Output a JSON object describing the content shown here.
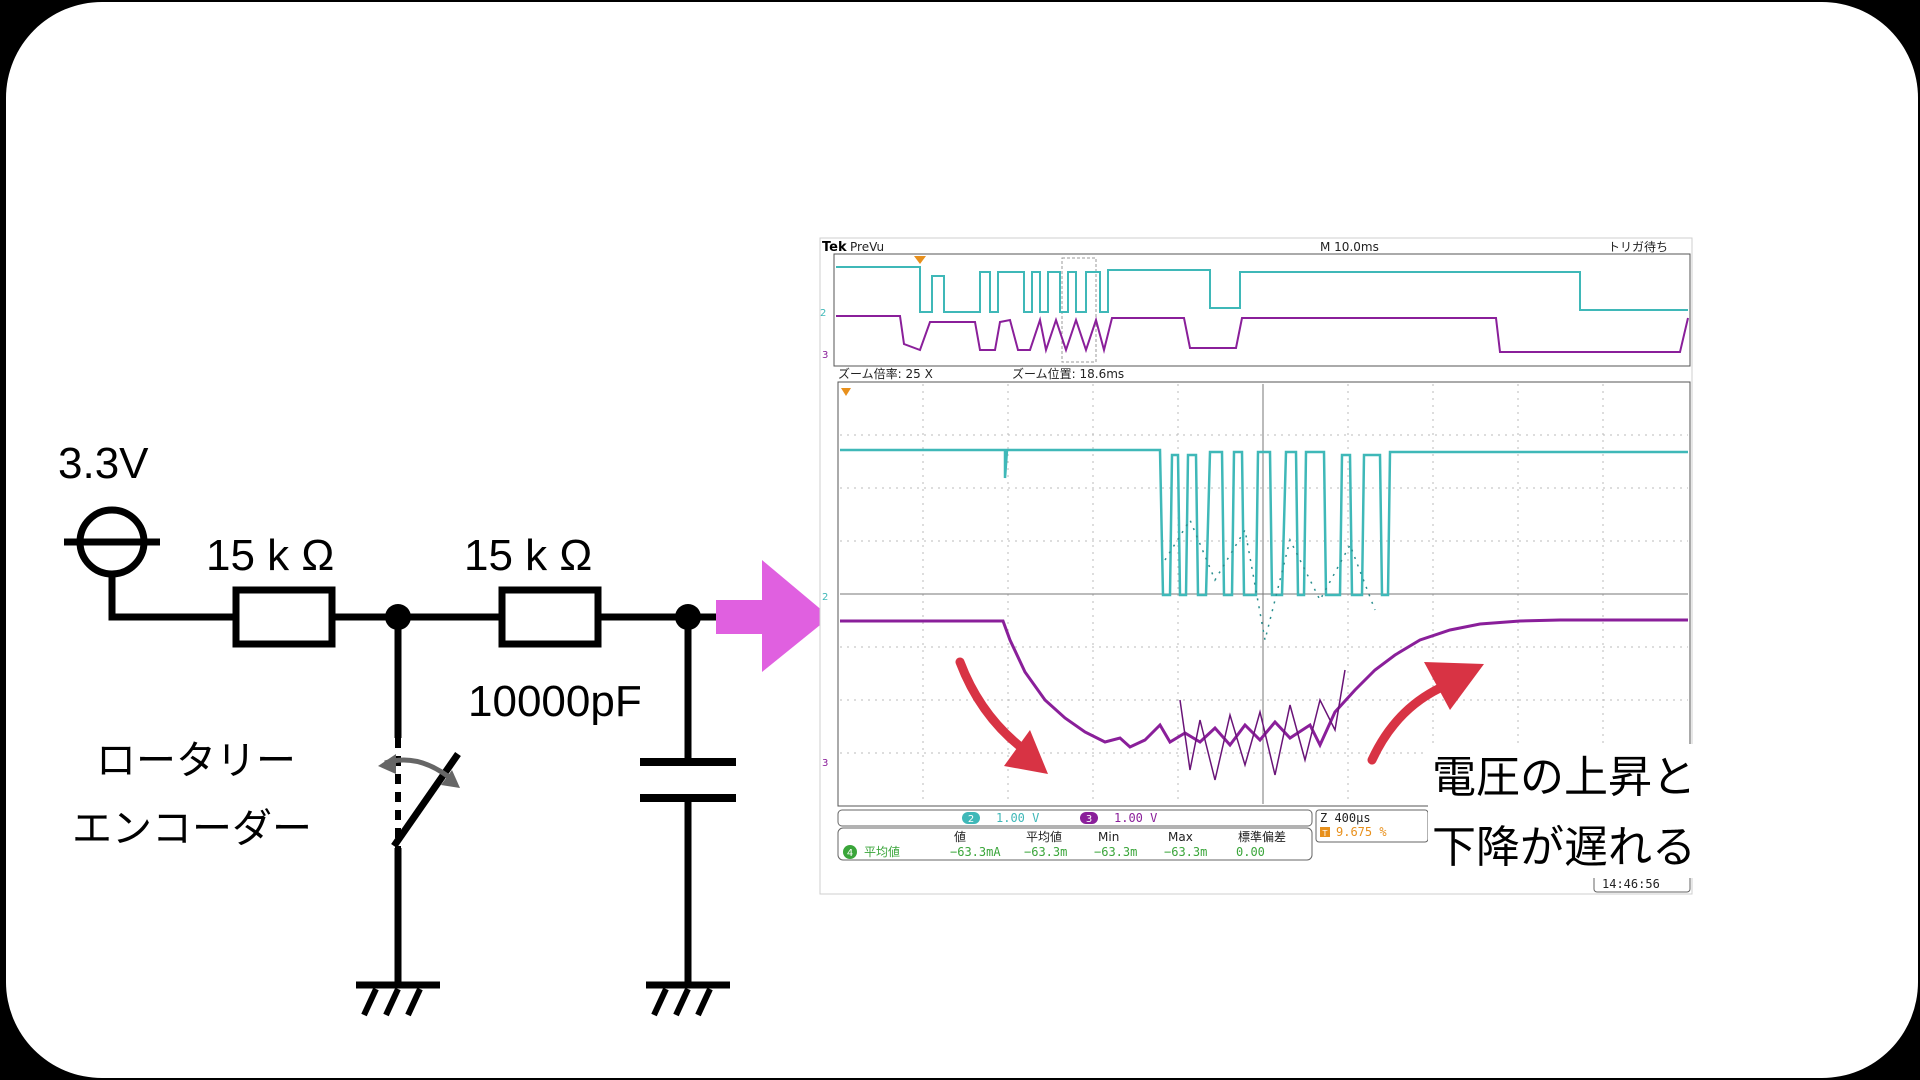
{
  "circuit": {
    "supply_label": "3.3V",
    "resistor1_label": "15 k Ω",
    "resistor2_label": "15 k Ω",
    "capacitor_label": "10000pF",
    "encoder_label_line1": "ロータリー",
    "encoder_label_line2": "エンコーダー"
  },
  "scope": {
    "brand": "Tek",
    "mode": "PreVu",
    "timebase": "M 10.0ms",
    "trigger_status": "トリガ待ち",
    "zoom_factor": "ズーム倍率: 25 X",
    "zoom_position": "ズーム位置: 18.6ms",
    "ch2_num": "2",
    "ch2_scale": "1.00 V",
    "ch3_num": "3",
    "ch3_scale": "1.00 V",
    "zoom_time": "Z 400µs",
    "trigger_num": "T",
    "trigger_pct": "9.675 %",
    "meas_headers": [
      "値",
      "平均値",
      "Min",
      "Max",
      "標準偏差"
    ],
    "meas_num": "4",
    "meas_name": "平均値",
    "meas_values": [
      "−63.3mA",
      "−63.3m",
      "−63.3m",
      "−63.3m",
      "0.00"
    ],
    "clock": "14:46:56",
    "colors": {
      "ch2": "#3fb8b8",
      "ch3": "#8a1f9a",
      "meas": "#3aa53a",
      "trigger": "#e8901c"
    }
  },
  "annotation": {
    "line1": "電圧の上昇と",
    "line2": "下降が遅れる",
    "arrow_color": "#d83344"
  },
  "pointer_arrow_color": "#e060e0"
}
